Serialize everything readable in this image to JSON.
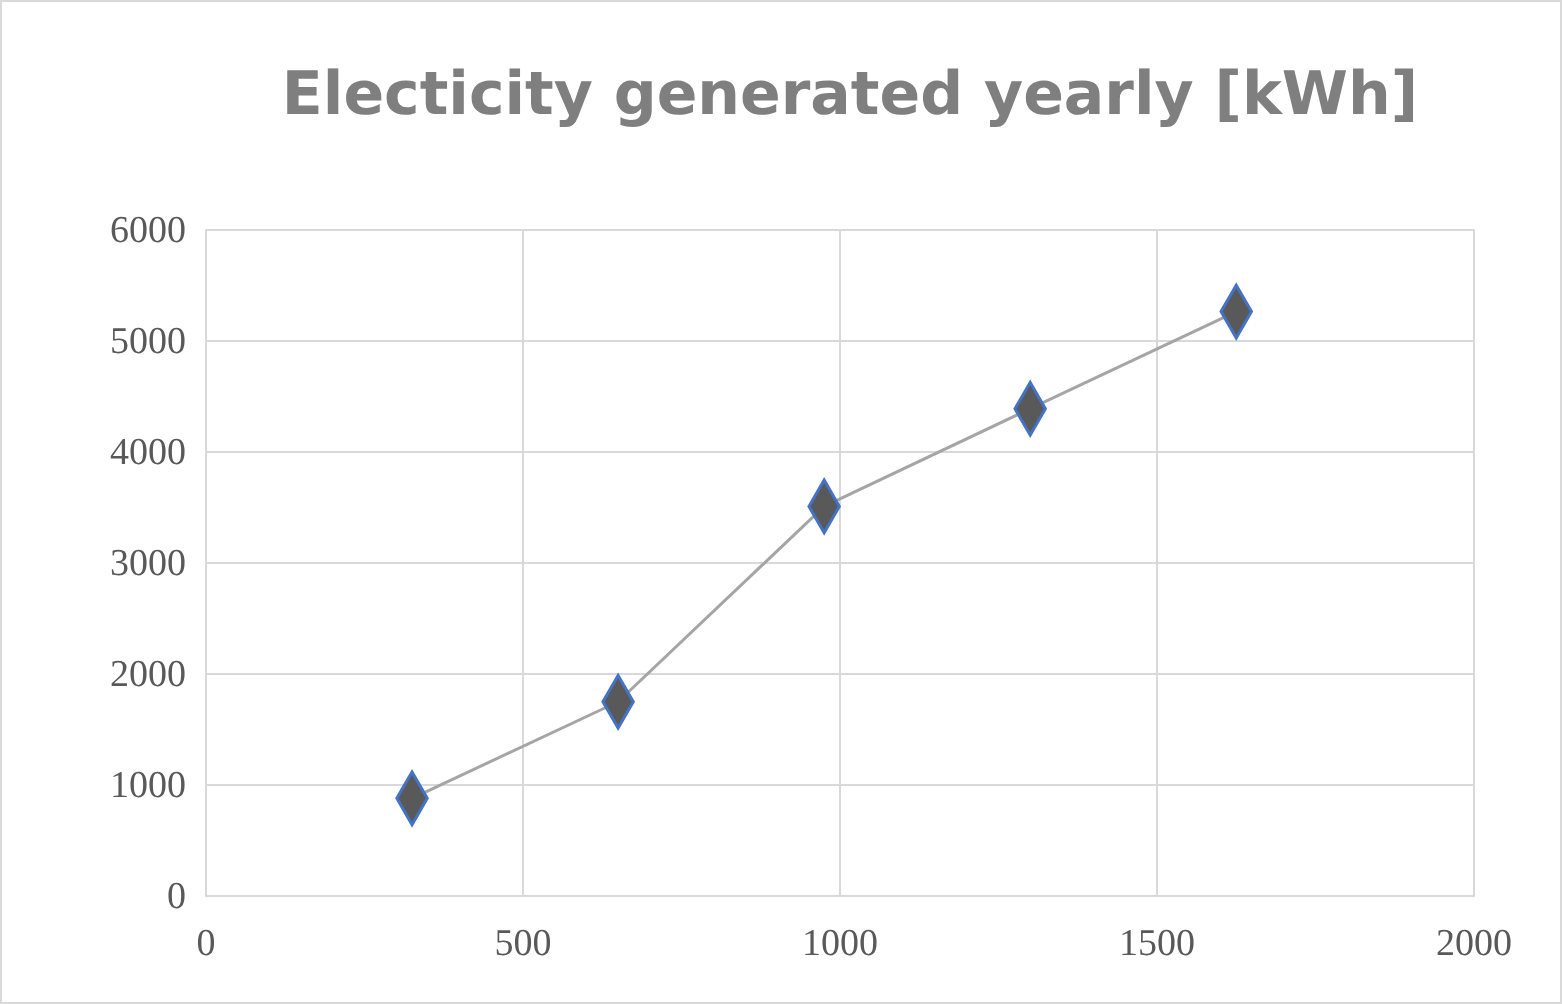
{
  "chart_data": {
    "type": "line",
    "title": "Electicity generated yearly [kWh]",
    "x": [
      325,
      650,
      975,
      1300,
      1625
    ],
    "series": [
      {
        "color": "#a5a5a5",
        "values": [
          880,
          1750,
          3510,
          4390,
          5265
        ]
      }
    ],
    "xlim": [
      0,
      2000
    ],
    "xticks": [
      0,
      500,
      1000,
      1500,
      2000
    ],
    "ylim": [
      0,
      6000
    ],
    "yticks": [
      0,
      1000,
      2000,
      3000,
      4000,
      5000,
      6000
    ],
    "grid": true,
    "marker": "diamond",
    "line_style": "solid"
  }
}
